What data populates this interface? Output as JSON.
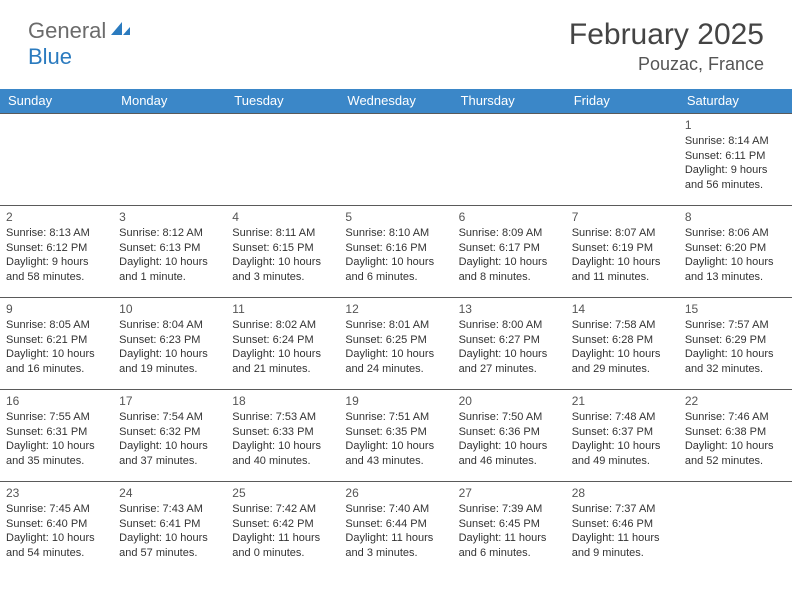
{
  "logo": {
    "text_general": "General",
    "text_blue": "Blue"
  },
  "title": "February 2025",
  "location": "Pouzac, France",
  "colors": {
    "header_bg": "#3b87c8",
    "header_text": "#ffffff",
    "border": "#5a5a5a",
    "logo_gray": "#6b6b6b",
    "logo_blue": "#2b7bbf"
  },
  "day_headers": [
    "Sunday",
    "Monday",
    "Tuesday",
    "Wednesday",
    "Thursday",
    "Friday",
    "Saturday"
  ],
  "weeks": [
    [
      null,
      null,
      null,
      null,
      null,
      null,
      {
        "n": "1",
        "sr": "Sunrise: 8:14 AM",
        "ss": "Sunset: 6:11 PM",
        "dl1": "Daylight: 9 hours",
        "dl2": "and 56 minutes."
      }
    ],
    [
      {
        "n": "2",
        "sr": "Sunrise: 8:13 AM",
        "ss": "Sunset: 6:12 PM",
        "dl1": "Daylight: 9 hours",
        "dl2": "and 58 minutes."
      },
      {
        "n": "3",
        "sr": "Sunrise: 8:12 AM",
        "ss": "Sunset: 6:13 PM",
        "dl1": "Daylight: 10 hours",
        "dl2": "and 1 minute."
      },
      {
        "n": "4",
        "sr": "Sunrise: 8:11 AM",
        "ss": "Sunset: 6:15 PM",
        "dl1": "Daylight: 10 hours",
        "dl2": "and 3 minutes."
      },
      {
        "n": "5",
        "sr": "Sunrise: 8:10 AM",
        "ss": "Sunset: 6:16 PM",
        "dl1": "Daylight: 10 hours",
        "dl2": "and 6 minutes."
      },
      {
        "n": "6",
        "sr": "Sunrise: 8:09 AM",
        "ss": "Sunset: 6:17 PM",
        "dl1": "Daylight: 10 hours",
        "dl2": "and 8 minutes."
      },
      {
        "n": "7",
        "sr": "Sunrise: 8:07 AM",
        "ss": "Sunset: 6:19 PM",
        "dl1": "Daylight: 10 hours",
        "dl2": "and 11 minutes."
      },
      {
        "n": "8",
        "sr": "Sunrise: 8:06 AM",
        "ss": "Sunset: 6:20 PM",
        "dl1": "Daylight: 10 hours",
        "dl2": "and 13 minutes."
      }
    ],
    [
      {
        "n": "9",
        "sr": "Sunrise: 8:05 AM",
        "ss": "Sunset: 6:21 PM",
        "dl1": "Daylight: 10 hours",
        "dl2": "and 16 minutes."
      },
      {
        "n": "10",
        "sr": "Sunrise: 8:04 AM",
        "ss": "Sunset: 6:23 PM",
        "dl1": "Daylight: 10 hours",
        "dl2": "and 19 minutes."
      },
      {
        "n": "11",
        "sr": "Sunrise: 8:02 AM",
        "ss": "Sunset: 6:24 PM",
        "dl1": "Daylight: 10 hours",
        "dl2": "and 21 minutes."
      },
      {
        "n": "12",
        "sr": "Sunrise: 8:01 AM",
        "ss": "Sunset: 6:25 PM",
        "dl1": "Daylight: 10 hours",
        "dl2": "and 24 minutes."
      },
      {
        "n": "13",
        "sr": "Sunrise: 8:00 AM",
        "ss": "Sunset: 6:27 PM",
        "dl1": "Daylight: 10 hours",
        "dl2": "and 27 minutes."
      },
      {
        "n": "14",
        "sr": "Sunrise: 7:58 AM",
        "ss": "Sunset: 6:28 PM",
        "dl1": "Daylight: 10 hours",
        "dl2": "and 29 minutes."
      },
      {
        "n": "15",
        "sr": "Sunrise: 7:57 AM",
        "ss": "Sunset: 6:29 PM",
        "dl1": "Daylight: 10 hours",
        "dl2": "and 32 minutes."
      }
    ],
    [
      {
        "n": "16",
        "sr": "Sunrise: 7:55 AM",
        "ss": "Sunset: 6:31 PM",
        "dl1": "Daylight: 10 hours",
        "dl2": "and 35 minutes."
      },
      {
        "n": "17",
        "sr": "Sunrise: 7:54 AM",
        "ss": "Sunset: 6:32 PM",
        "dl1": "Daylight: 10 hours",
        "dl2": "and 37 minutes."
      },
      {
        "n": "18",
        "sr": "Sunrise: 7:53 AM",
        "ss": "Sunset: 6:33 PM",
        "dl1": "Daylight: 10 hours",
        "dl2": "and 40 minutes."
      },
      {
        "n": "19",
        "sr": "Sunrise: 7:51 AM",
        "ss": "Sunset: 6:35 PM",
        "dl1": "Daylight: 10 hours",
        "dl2": "and 43 minutes."
      },
      {
        "n": "20",
        "sr": "Sunrise: 7:50 AM",
        "ss": "Sunset: 6:36 PM",
        "dl1": "Daylight: 10 hours",
        "dl2": "and 46 minutes."
      },
      {
        "n": "21",
        "sr": "Sunrise: 7:48 AM",
        "ss": "Sunset: 6:37 PM",
        "dl1": "Daylight: 10 hours",
        "dl2": "and 49 minutes."
      },
      {
        "n": "22",
        "sr": "Sunrise: 7:46 AM",
        "ss": "Sunset: 6:38 PM",
        "dl1": "Daylight: 10 hours",
        "dl2": "and 52 minutes."
      }
    ],
    [
      {
        "n": "23",
        "sr": "Sunrise: 7:45 AM",
        "ss": "Sunset: 6:40 PM",
        "dl1": "Daylight: 10 hours",
        "dl2": "and 54 minutes."
      },
      {
        "n": "24",
        "sr": "Sunrise: 7:43 AM",
        "ss": "Sunset: 6:41 PM",
        "dl1": "Daylight: 10 hours",
        "dl2": "and 57 minutes."
      },
      {
        "n": "25",
        "sr": "Sunrise: 7:42 AM",
        "ss": "Sunset: 6:42 PM",
        "dl1": "Daylight: 11 hours",
        "dl2": "and 0 minutes."
      },
      {
        "n": "26",
        "sr": "Sunrise: 7:40 AM",
        "ss": "Sunset: 6:44 PM",
        "dl1": "Daylight: 11 hours",
        "dl2": "and 3 minutes."
      },
      {
        "n": "27",
        "sr": "Sunrise: 7:39 AM",
        "ss": "Sunset: 6:45 PM",
        "dl1": "Daylight: 11 hours",
        "dl2": "and 6 minutes."
      },
      {
        "n": "28",
        "sr": "Sunrise: 7:37 AM",
        "ss": "Sunset: 6:46 PM",
        "dl1": "Daylight: 11 hours",
        "dl2": "and 9 minutes."
      },
      null
    ]
  ]
}
